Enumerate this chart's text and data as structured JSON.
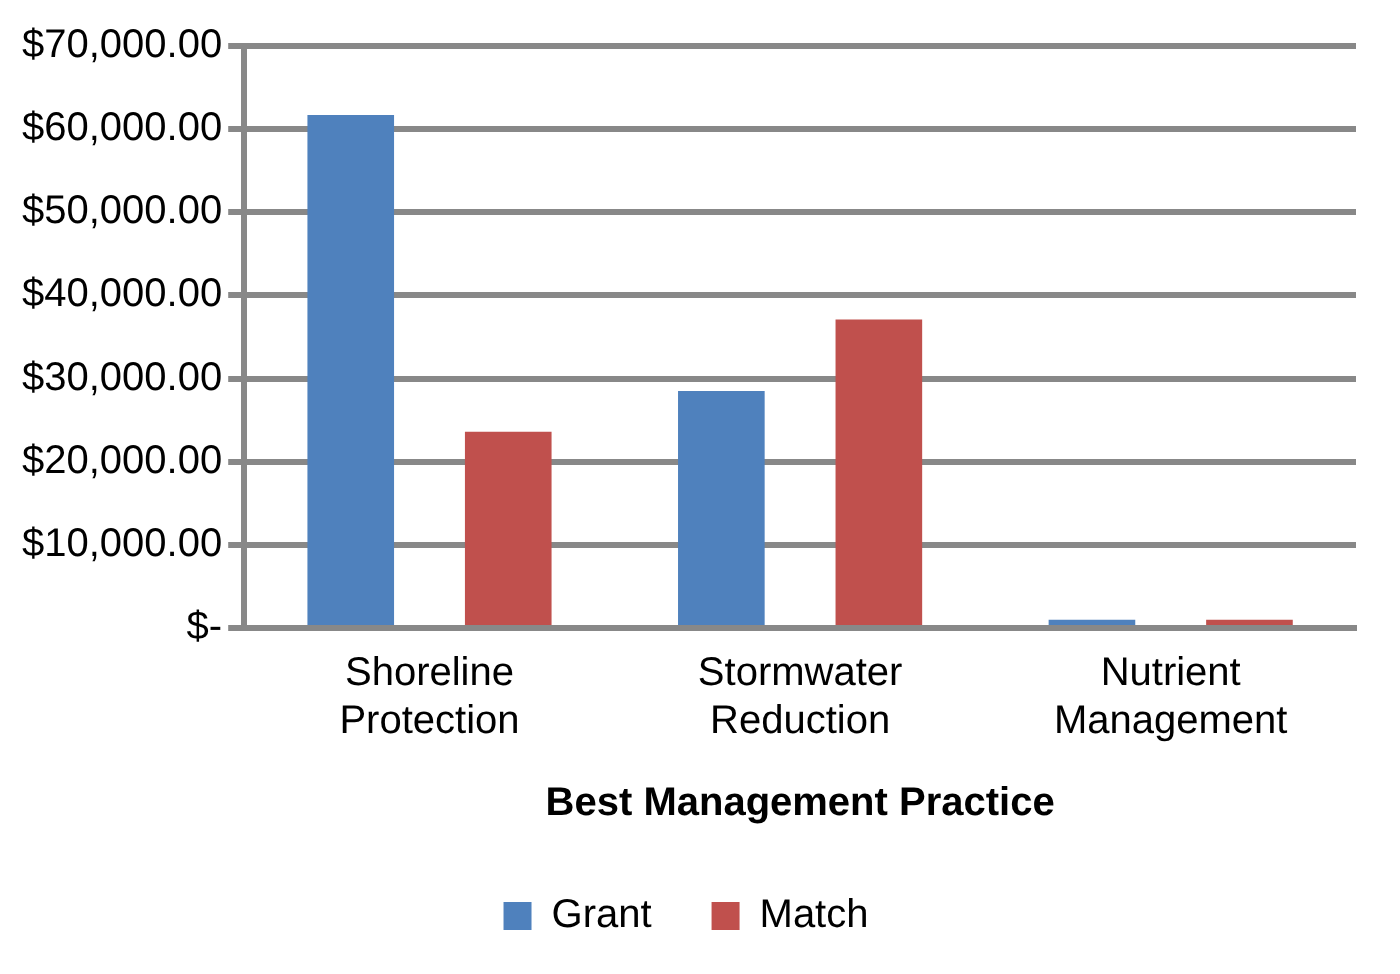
{
  "chart_data": {
    "type": "bar",
    "xlabel": "Best Management Practice",
    "categories": [
      "Shoreline Protection",
      "Stormwater Reduction",
      "Nutrient Management"
    ],
    "series": [
      {
        "name": "Grant",
        "color": "#4f81bd",
        "values": [
          61700,
          28500,
          1000
        ]
      },
      {
        "name": "Match",
        "color": "#c0504d",
        "values": [
          23600,
          37100,
          1000
        ]
      }
    ],
    "ylim": [
      0,
      70000
    ],
    "yticks": [
      {
        "value": 0,
        "label": "$-"
      },
      {
        "value": 10000,
        "label": "$10,000.00"
      },
      {
        "value": 20000,
        "label": "$20,000.00"
      },
      {
        "value": 30000,
        "label": "$30,000.00"
      },
      {
        "value": 40000,
        "label": "$40,000.00"
      },
      {
        "value": 50000,
        "label": "$50,000.00"
      },
      {
        "value": 60000,
        "label": "$60,000.00"
      },
      {
        "value": 70000,
        "label": "$70,000.00"
      }
    ],
    "grid": "y",
    "legend": "bottom"
  }
}
